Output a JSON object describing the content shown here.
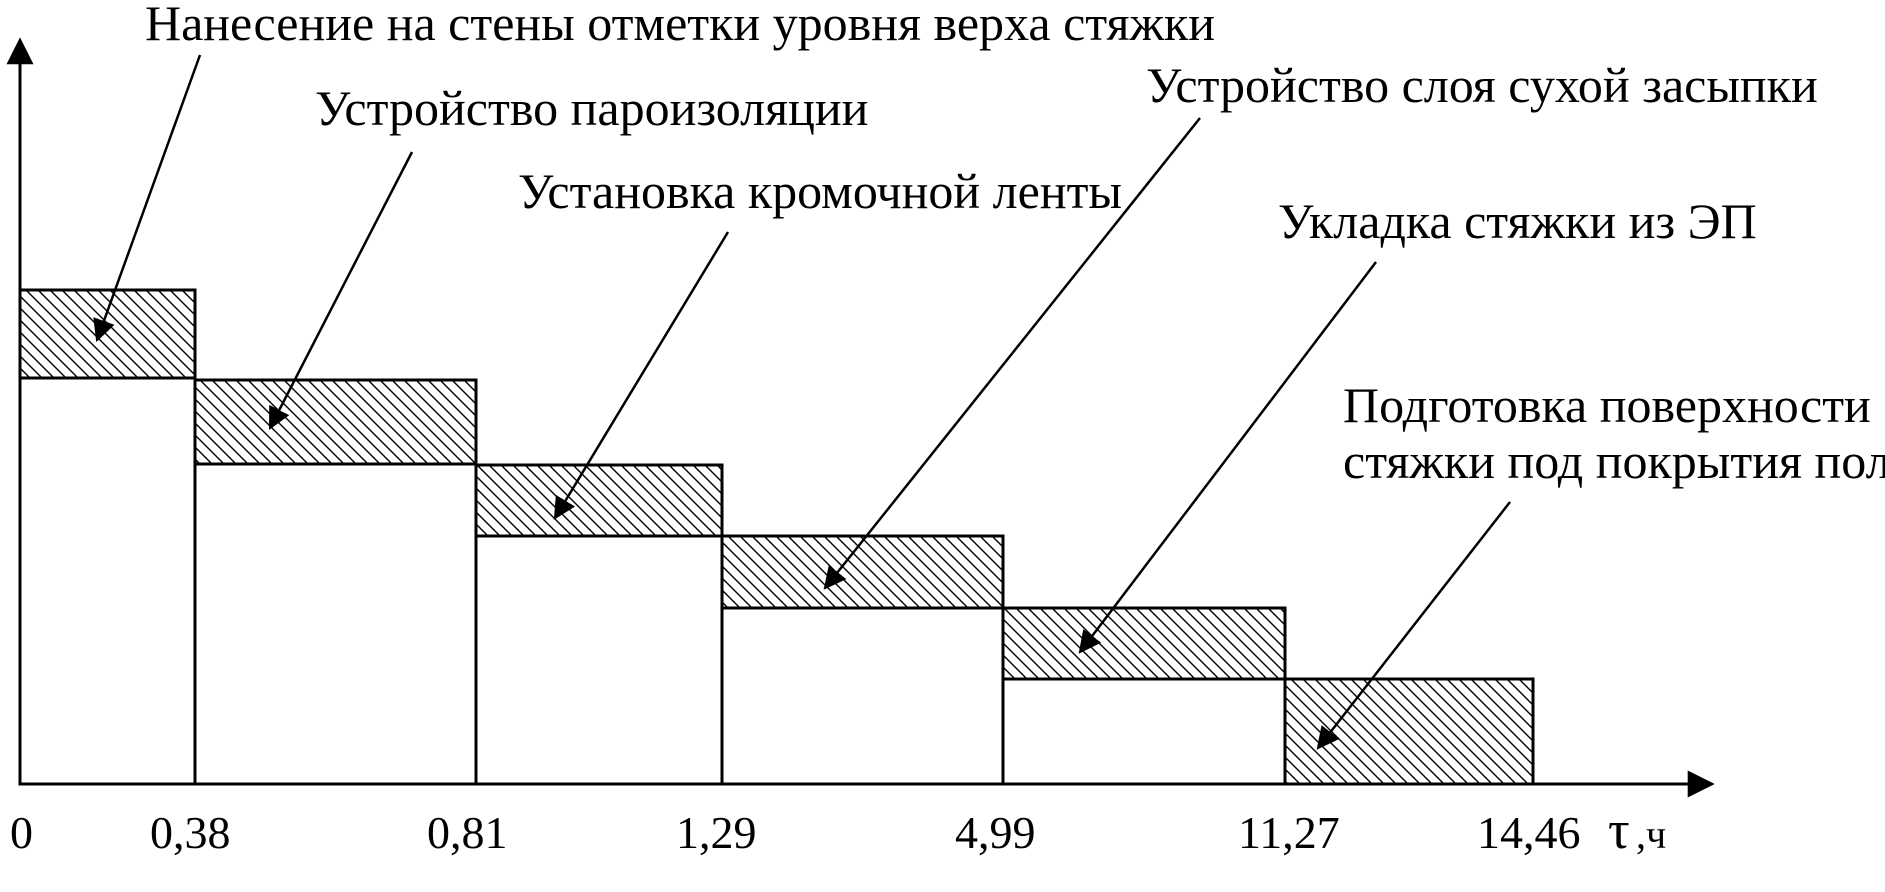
{
  "diagram": {
    "axis_unit_symbol": "τ",
    "axis_unit_suffix": ",ч",
    "ticks": [
      "0",
      "0,38",
      "0,81",
      "1,29",
      "4,99",
      "11,27",
      "14,46"
    ],
    "stages": [
      {
        "label": "Нанесение на стены отметки уровня верха стяжки"
      },
      {
        "label": "Устройство пароизоляции"
      },
      {
        "label": "Установка кромочной ленты"
      },
      {
        "label": "Устройство слоя сухой засыпки"
      },
      {
        "label": "Укладка стяжки из ЭП"
      },
      {
        "label_line1": "Подготовка  поверхности",
        "label_line2": "стяжки под покрытия пола"
      }
    ]
  }
}
